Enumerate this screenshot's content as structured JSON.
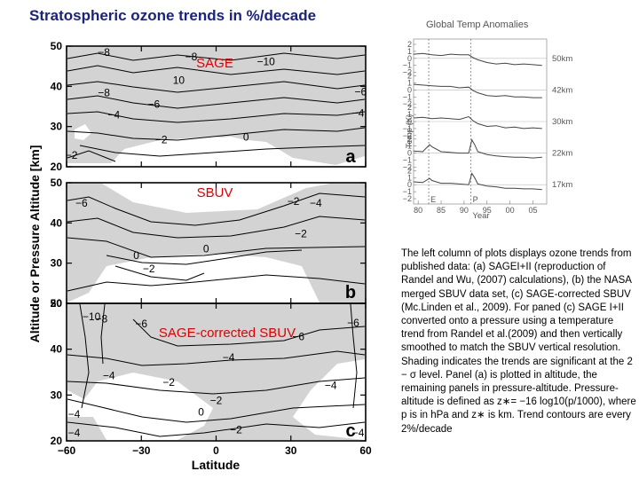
{
  "title": "Stratospheric ozone trends in %/decade",
  "caption": "The left column of plots displays ozone trends from published data: (a) SAGEI+II (reproduction of Randel and Wu, (2007) calculations), (b) the NASA merged SBUV data set, (c) SAGE-corrected SBUV (Mc.Linden et al., 2009). For paned (c) SAGE I+II converted onto a pressure using a temperature trend from Randel et al.(2009) and then vertically smoothed to match the SBUV vertical resolution. Shading indicates the trends are significant at the 2 − σ level. Panel (a) is plotted in altitude, the remaining panels in pressure-altitude. Pressure-altitude is defined as z∗= −16 log10(p/1000), where p is in hPa and z∗ is km. Trend contours are every 2%/decade",
  "colors": {
    "shade": "#d3d3d3",
    "title": "#1a237e",
    "dataset_label": "#e00000",
    "temp_series": "#444444"
  },
  "chart_data": [
    {
      "type": "contour",
      "xlabel": "Latitude",
      "ylabel": "Altitude or Pressure Altitude [km]",
      "xlim": [
        -60,
        60
      ],
      "x_ticks": [
        "−60",
        "−30",
        "0",
        "30",
        "60"
      ],
      "y_ticks": [
        "20",
        "30",
        "40",
        "50"
      ],
      "contour_interval": "2%/decade",
      "shading": "significant at 2-sigma",
      "panels": [
        {
          "id": "a",
          "dataset": "SAGE",
          "ylim": [
            20,
            50
          ],
          "contour_labels": [
            {
              "text": "−8",
              "lat": -45,
              "z": 47.6
            },
            {
              "text": "−8",
              "lat": -10,
              "z": 46.5
            },
            {
              "text": "−10",
              "lat": 20,
              "z": 45.3
            },
            {
              "text": "10",
              "lat": -15,
              "z": 40.6
            },
            {
              "text": "−8",
              "lat": -45,
              "z": 37.5
            },
            {
              "text": "−6",
              "lat": -25,
              "z": 34.7
            },
            {
              "text": "−4",
              "lat": -41,
              "z": 32.0
            },
            {
              "text": "−2",
              "lat": -22,
              "z": 25.8
            },
            {
              "text": "0",
              "lat": 12,
              "z": 26.5
            },
            {
              "text": "−6",
              "lat": 58,
              "z": 37.8
            },
            {
              "text": "−4",
              "lat": 57,
              "z": 32.5
            },
            {
              "text": "−2",
              "lat": -58,
              "z": 22.0
            }
          ]
        },
        {
          "id": "b",
          "dataset": "SBUV",
          "ylim": [
            20,
            50
          ],
          "contour_labels": [
            {
              "text": "−6",
              "lat": -54,
              "z": 44.0
            },
            {
              "text": "−2",
              "lat": 31,
              "z": 44.5
            },
            {
              "text": "−4",
              "lat": 40,
              "z": 44.0
            },
            {
              "text": "−2",
              "lat": 34,
              "z": 36.4
            },
            {
              "text": "0",
              "lat": -4,
              "z": 32.7
            },
            {
              "text": "0",
              "lat": -32,
              "z": 31.0
            },
            {
              "text": "−2",
              "lat": -27,
              "z": 27.7
            }
          ]
        },
        {
          "id": "c",
          "dataset": "SAGE-corrected SBUV",
          "ylim": [
            20,
            50
          ],
          "contour_labels": [
            {
              "text": "−10",
              "lat": -50,
              "z": 46.3
            },
            {
              "text": "−8",
              "lat": -46,
              "z": 45.8
            },
            {
              "text": "−6",
              "lat": -30,
              "z": 44.8
            },
            {
              "text": "−6",
              "lat": 55,
              "z": 45.0
            },
            {
              "text": "−6",
              "lat": 33,
              "z": 42.0
            },
            {
              "text": "−4",
              "lat": -43,
              "z": 33.5
            },
            {
              "text": "−4",
              "lat": 5,
              "z": 37.4
            },
            {
              "text": "−4",
              "lat": 46,
              "z": 31.3
            },
            {
              "text": "−2",
              "lat": -19,
              "z": 32.0
            },
            {
              "text": "−2",
              "lat": 0,
              "z": 28.0
            },
            {
              "text": "−2",
              "lat": 8,
              "z": 21.6
            },
            {
              "text": "0",
              "lat": -6,
              "z": 25.5
            },
            {
              "text": "−4",
              "lat": -57,
              "z": 25.0
            },
            {
              "text": "−4",
              "lat": -57,
              "z": 21.0
            },
            {
              "text": "−4",
              "lat": 57,
              "z": 21.0
            }
          ]
        }
      ]
    },
    {
      "type": "line",
      "title": "Global Temp Anomalies",
      "xlabel": "Year",
      "ylabel": "Temp (K)",
      "x_ticks": [
        "80",
        "85",
        "90",
        "95",
        "00",
        "05"
      ],
      "xlim": [
        1979,
        2008
      ],
      "y_ticks": [
        "2",
        "1",
        "0",
        "−1",
        "−2"
      ],
      "markers": [
        {
          "text": "E",
          "x": 1982.3
        },
        {
          "text": "P",
          "x": 1991.5
        }
      ],
      "series": [
        {
          "name": "50km",
          "x": [
            1979,
            1981,
            1983,
            1985,
            1987,
            1989,
            1991,
            1992,
            1993,
            1995,
            1997,
            1999,
            2001,
            2003,
            2005,
            2007
          ],
          "y": [
            0.6,
            0.7,
            0.5,
            0.4,
            0.6,
            0.5,
            0.5,
            0.1,
            -0.2,
            -0.6,
            -0.8,
            -0.7,
            -0.9,
            -0.8,
            -0.9,
            -1.0
          ]
        },
        {
          "name": "42km",
          "x": [
            1979,
            1981,
            1983,
            1985,
            1987,
            1989,
            1991,
            1992,
            1993,
            1995,
            1997,
            1999,
            2001,
            2003,
            2005,
            2007
          ],
          "y": [
            0.8,
            0.7,
            0.6,
            0.5,
            0.5,
            0.3,
            0.4,
            -0.1,
            -0.4,
            -0.8,
            -0.9,
            -0.8,
            -1.0,
            -1.0,
            -1.1,
            -1.1
          ]
        },
        {
          "name": "30km",
          "x": [
            1979,
            1981,
            1983,
            1985,
            1987,
            1989,
            1991,
            1992,
            1993,
            1995,
            1997,
            1999,
            2001,
            2003,
            2005,
            2007
          ],
          "y": [
            0.5,
            0.6,
            0.4,
            0.5,
            0.4,
            0.3,
            0.7,
            0.1,
            -0.3,
            -0.7,
            -0.6,
            -0.9,
            -0.8,
            -1.0,
            -0.9,
            -1.0
          ]
        },
        {
          "name": "22km",
          "x": [
            1979,
            1981,
            1982.5,
            1983,
            1985,
            1987,
            1989,
            1991,
            1991.7,
            1992.3,
            1993,
            1995,
            1997,
            1999,
            2001,
            2003,
            2005,
            2007
          ],
          "y": [
            0.3,
            0.2,
            1.2,
            0.9,
            0.2,
            0.1,
            0.0,
            0.0,
            1.9,
            1.2,
            0.2,
            -0.2,
            -0.4,
            -0.5,
            -0.6,
            -0.6,
            -0.7,
            -0.6
          ]
        },
        {
          "name": "17km",
          "x": [
            1979,
            1981,
            1982.5,
            1983,
            1985,
            1987,
            1989,
            1991,
            1991.7,
            1992.3,
            1993,
            1995,
            1997,
            1999,
            2001,
            2003,
            2005,
            2007
          ],
          "y": [
            0.4,
            0.3,
            0.9,
            0.6,
            0.2,
            0.2,
            0.1,
            0.0,
            1.6,
            1.0,
            0.1,
            -0.2,
            -0.3,
            -0.5,
            -0.5,
            -0.6,
            -0.6,
            -0.7
          ]
        }
      ]
    }
  ]
}
